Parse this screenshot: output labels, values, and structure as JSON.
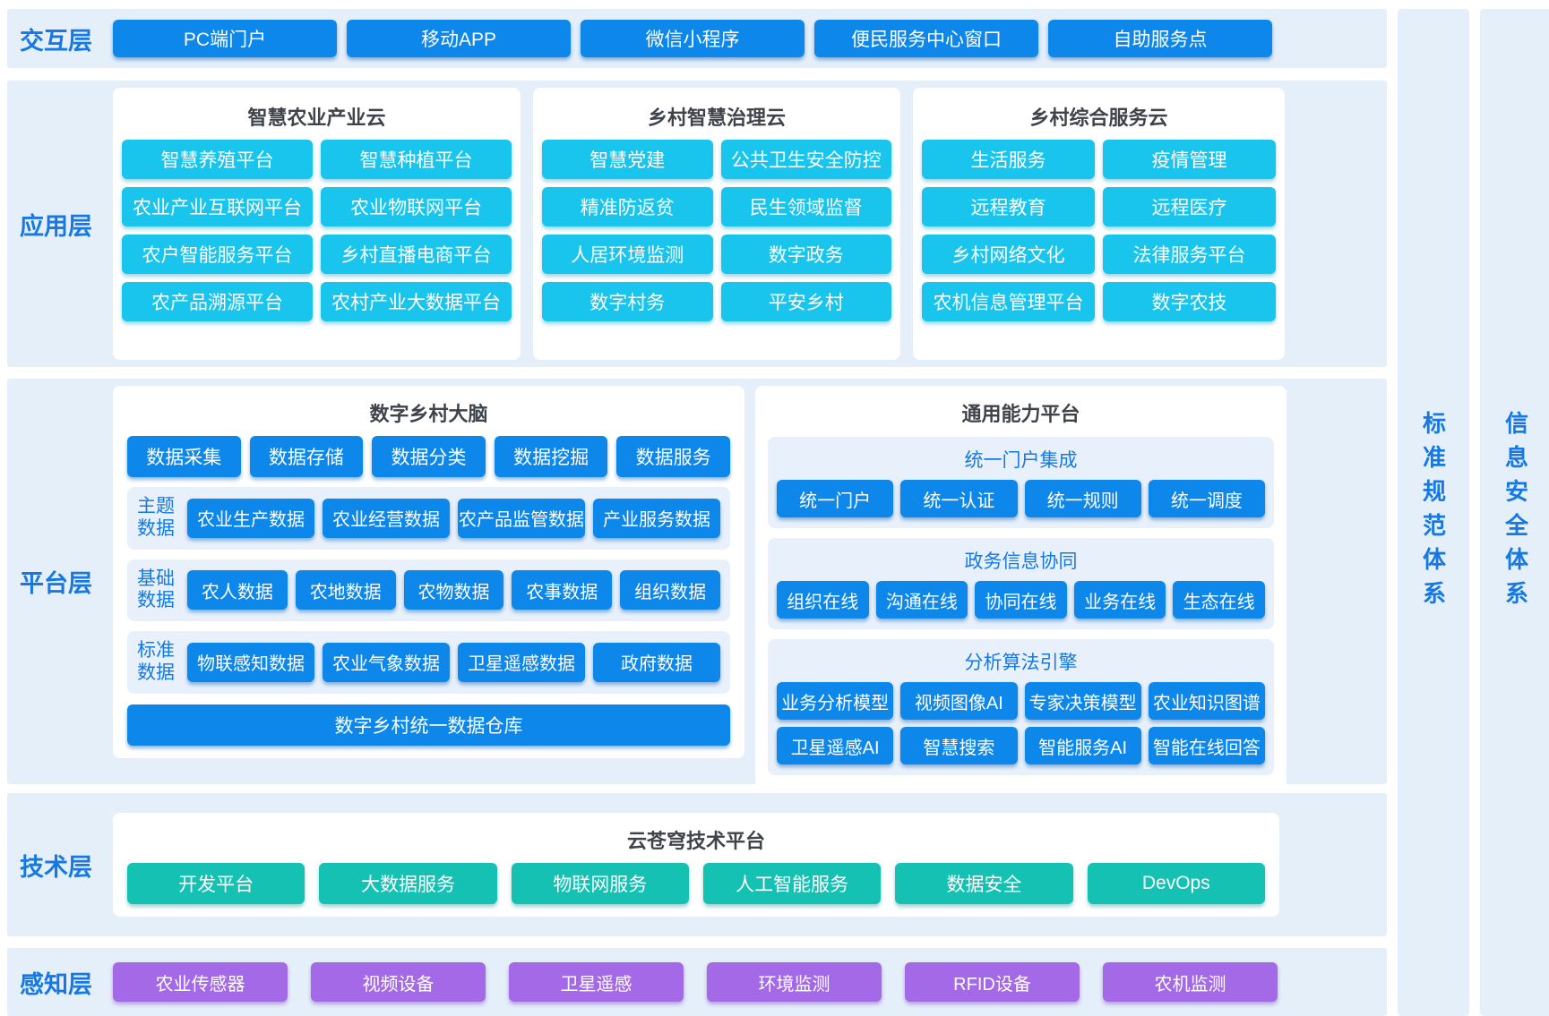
{
  "colors": {
    "panel_bg": "#E4EFFA",
    "subpanel_bg": "#E8F1FB",
    "layer_label_blue": "#1679E3",
    "button_blue": "#0D87E9",
    "button_cyan": "#19C5EC",
    "button_teal": "#14C1B2",
    "button_purple": "#A369E6",
    "card_title_gray": "#3F444B"
  },
  "interaction_layer": {
    "label": "交互层",
    "items": [
      "PC端门户",
      "移动APP",
      "微信小程序",
      "便民服务中心窗口",
      "自助服务点"
    ]
  },
  "application_layer": {
    "label": "应用层",
    "clouds": [
      {
        "title": "智慧农业产业云",
        "items": [
          "智慧养殖平台",
          "智慧种植平台",
          "农业产业互联网平台",
          "农业物联网平台",
          "农户智能服务平台",
          "乡村直播电商平台",
          "农产品溯源平台",
          "农村产业大数据平台"
        ]
      },
      {
        "title": "乡村智慧治理云",
        "items": [
          "智慧党建",
          "公共卫生安全防控",
          "精准防返贫",
          "民生领域监督",
          "人居环境监测",
          "数字政务",
          "数字村务",
          "平安乡村"
        ]
      },
      {
        "title": "乡村综合服务云",
        "items": [
          "生活服务",
          "疫情管理",
          "远程教育",
          "远程医疗",
          "乡村网络文化",
          "法律服务平台",
          "农机信息管理平台",
          "数字农技"
        ]
      }
    ]
  },
  "platform_layer": {
    "label": "平台层",
    "brain": {
      "title": "数字乡村大脑",
      "process_items": [
        "数据采集",
        "数据存储",
        "数据分类",
        "数据挖掘",
        "数据服务"
      ],
      "data_groups": [
        {
          "label": "主题数据",
          "items": [
            "农业生产数据",
            "农业经营数据",
            "农产品监管数据",
            "产业服务数据"
          ]
        },
        {
          "label": "基础数据",
          "items": [
            "农人数据",
            "农地数据",
            "农物数据",
            "农事数据",
            "组织数据"
          ]
        },
        {
          "label": "标准数据",
          "items": [
            "物联感知数据",
            "农业气象数据",
            "卫星遥感数据",
            "政府数据"
          ]
        }
      ],
      "warehouse": "数字乡村统一数据仓库"
    },
    "capability": {
      "title": "通用能力平台",
      "groups": [
        {
          "heading": "统一门户集成",
          "items": [
            "统一门户",
            "统一认证",
            "统一规则",
            "统一调度"
          ]
        },
        {
          "heading": "政务信息协同",
          "items": [
            "组织在线",
            "沟通在线",
            "协同在线",
            "业务在线",
            "生态在线"
          ]
        },
        {
          "heading": "分析算法引擎",
          "items": [
            "业务分析模型",
            "视频图像AI",
            "专家决策模型",
            "农业知识图谱",
            "卫星遥感AI",
            "智慧搜索",
            "智能服务AI",
            "智能在线回答"
          ]
        }
      ]
    }
  },
  "technology_layer": {
    "label": "技术层",
    "title": "云苍穹技术平台",
    "items": [
      "开发平台",
      "大数据服务",
      "物联网服务",
      "人工智能服务",
      "数据安全",
      "DevOps"
    ]
  },
  "perception_layer": {
    "label": "感知层",
    "items": [
      "农业传感器",
      "视频设备",
      "卫星遥感",
      "环境监测",
      "RFID设备",
      "农机监测"
    ]
  },
  "side_bars": [
    "标准规范体系",
    "信息安全体系"
  ]
}
